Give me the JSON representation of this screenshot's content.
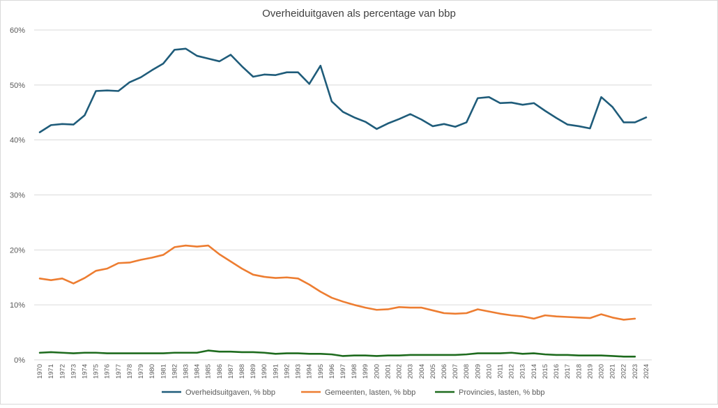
{
  "chart_data": {
    "type": "line",
    "title": "Overheiduitgaven als percentage van bbp",
    "xlabel": "",
    "ylabel": "",
    "ylim": [
      0,
      60
    ],
    "yticks": [
      0,
      10,
      20,
      30,
      40,
      50,
      60
    ],
    "y_tick_labels": [
      "0%",
      "10%",
      "20%",
      "30%",
      "40%",
      "50%",
      "60%"
    ],
    "grid": true,
    "legend_position": "bottom",
    "categories": [
      "1970",
      "1971",
      "1972",
      "1973",
      "1974",
      "1975",
      "1976",
      "1977",
      "1978",
      "1979",
      "1980",
      "1981",
      "1982",
      "1983",
      "1984",
      "1985",
      "1986",
      "1987",
      "1988",
      "1989",
      "1990",
      "1991",
      "1992",
      "1993",
      "1994",
      "1995",
      "1996",
      "1997",
      "1998",
      "1999",
      "2000",
      "2001",
      "2002",
      "2003",
      "2004",
      "2005",
      "2006",
      "2007",
      "2008",
      "2009",
      "2010",
      "2011",
      "2012",
      "2013",
      "2014",
      "2015",
      "2016",
      "2017",
      "2018",
      "2019",
      "2020",
      "2021",
      "2022",
      "2023",
      "2024"
    ],
    "series": [
      {
        "name": "Overheidsuitgaven, % bbp",
        "color": "#1f5c7a",
        "values": [
          41.4,
          42.7,
          42.9,
          42.8,
          44.5,
          48.9,
          49.0,
          48.9,
          50.5,
          51.4,
          52.7,
          53.9,
          56.4,
          56.6,
          55.3,
          54.8,
          54.3,
          55.5,
          53.4,
          51.5,
          51.9,
          51.8,
          52.3,
          52.3,
          50.2,
          53.5,
          47.0,
          45.1,
          44.1,
          43.3,
          42.0,
          43.0,
          43.8,
          44.7,
          43.7,
          42.5,
          42.9,
          42.4,
          43.2,
          47.6,
          47.8,
          46.7,
          46.8,
          46.4,
          46.7,
          45.3,
          44.0,
          42.8,
          42.5,
          42.1,
          47.8,
          46.0,
          43.2,
          43.2,
          44.1
        ]
      },
      {
        "name": "Gemeenten, lasten, % bbp",
        "color": "#ed7d31",
        "values": [
          14.8,
          14.5,
          14.8,
          13.9,
          14.9,
          16.2,
          16.6,
          17.6,
          17.7,
          18.2,
          18.6,
          19.1,
          20.5,
          20.8,
          20.6,
          20.8,
          19.2,
          17.9,
          16.6,
          15.5,
          15.1,
          14.9,
          15.0,
          14.8,
          13.7,
          12.4,
          11.3,
          10.6,
          10.0,
          9.5,
          9.1,
          9.2,
          9.6,
          9.5,
          9.5,
          9.0,
          8.5,
          8.4,
          8.5,
          9.2,
          8.8,
          8.4,
          8.1,
          7.9,
          7.5,
          8.1,
          7.9,
          7.8,
          7.7,
          7.6,
          8.3,
          7.7,
          7.3,
          7.5,
          null
        ]
      },
      {
        "name": "Provincies, lasten, % bbp",
        "color": "#1e6b1e",
        "values": [
          1.3,
          1.4,
          1.3,
          1.2,
          1.3,
          1.3,
          1.2,
          1.2,
          1.2,
          1.2,
          1.2,
          1.2,
          1.3,
          1.3,
          1.3,
          1.7,
          1.5,
          1.5,
          1.4,
          1.4,
          1.3,
          1.1,
          1.2,
          1.2,
          1.1,
          1.1,
          1.0,
          0.7,
          0.8,
          0.8,
          0.7,
          0.8,
          0.8,
          0.9,
          0.9,
          0.9,
          0.9,
          0.9,
          1.0,
          1.2,
          1.2,
          1.2,
          1.3,
          1.1,
          1.2,
          1.0,
          0.9,
          0.9,
          0.8,
          0.8,
          0.8,
          0.7,
          0.6,
          0.6,
          null
        ]
      }
    ]
  }
}
